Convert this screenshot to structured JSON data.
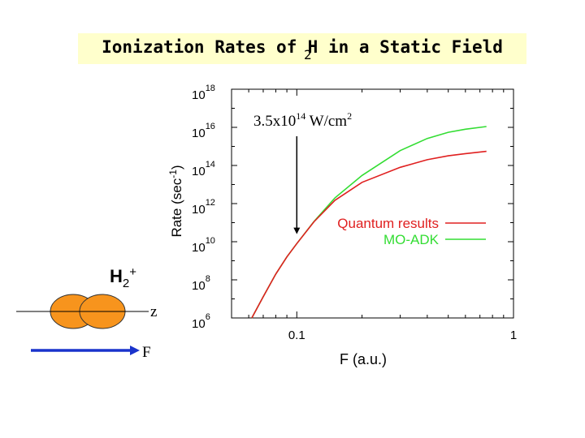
{
  "slide": {
    "title_pre": "Ionization Rates of ",
    "title_sub": "2",
    "title_main": "H",
    "title_post": " in a Static Field"
  },
  "chart_data": {
    "type": "line",
    "xscale": "log",
    "yscale": "log",
    "xlim": [
      0.05,
      1
    ],
    "ylim": [
      1000000.0,
      1e+18
    ],
    "xlabel": "F (a.u.)",
    "ylabel": "Rate (sec-1)",
    "ylabel_main": "Rate (sec",
    "ylabel_exp": "-1",
    "ylabel_close": ")",
    "x_ticks": [
      {
        "value": 0.1,
        "label": "0.1"
      },
      {
        "value": 1,
        "label": "1"
      }
    ],
    "y_ticks": [
      {
        "value": 1000000.0,
        "base": "10",
        "exp": "6"
      },
      {
        "value": 100000000.0,
        "base": "10",
        "exp": "8"
      },
      {
        "value": 10000000000.0,
        "base": "10",
        "exp": "10"
      },
      {
        "value": 1000000000000.0,
        "base": "10",
        "exp": "12"
      },
      {
        "value": 100000000000000.0,
        "base": "10",
        "exp": "14"
      },
      {
        "value": 1e+16,
        "base": "10",
        "exp": "16"
      },
      {
        "value": 1e+18,
        "base": "10",
        "exp": "18"
      }
    ],
    "series": [
      {
        "name": "Quantum results",
        "color": "#e02020",
        "x": [
          0.062,
          0.07,
          0.08,
          0.09,
          0.1,
          0.12,
          0.15,
          0.2,
          0.3,
          0.4,
          0.5,
          0.6,
          0.75
        ],
        "y": [
          1000000.0,
          13000000.0,
          200000000.0,
          1600000000.0,
          8000000000.0,
          110000000000.0,
          1500000000000.0,
          13000000000000.0,
          80000000000000.0,
          200000000000000.0,
          320000000000000.0,
          420000000000000.0,
          550000000000000.0
        ]
      },
      {
        "name": "MO-ADK",
        "color": "#33dd33",
        "x": [
          0.062,
          0.07,
          0.08,
          0.09,
          0.1,
          0.12,
          0.15,
          0.2,
          0.3,
          0.4,
          0.5,
          0.6,
          0.75
        ],
        "y": [
          1000000.0,
          13000000.0,
          200000000.0,
          1600000000.0,
          8000000000.0,
          115000000000.0,
          2000000000000.0,
          30000000000000.0,
          600000000000000.0,
          2600000000000000.0,
          5500000000000000.0,
          8000000000000000.0,
          1.1e+16
        ]
      }
    ],
    "annotation": {
      "x": 0.1,
      "y": 25000000000.0,
      "text_main": "3.5x10",
      "text_exp": "14",
      "text_unit": " W/cm",
      "text_unit_exp": "2"
    }
  },
  "molecule": {
    "label_main": "H",
    "label_sub": "2",
    "label_sup": "+",
    "axis_label": "z",
    "field_label": "F",
    "atom_color": "#f7941d",
    "arrow_color": "#1a33cc"
  }
}
